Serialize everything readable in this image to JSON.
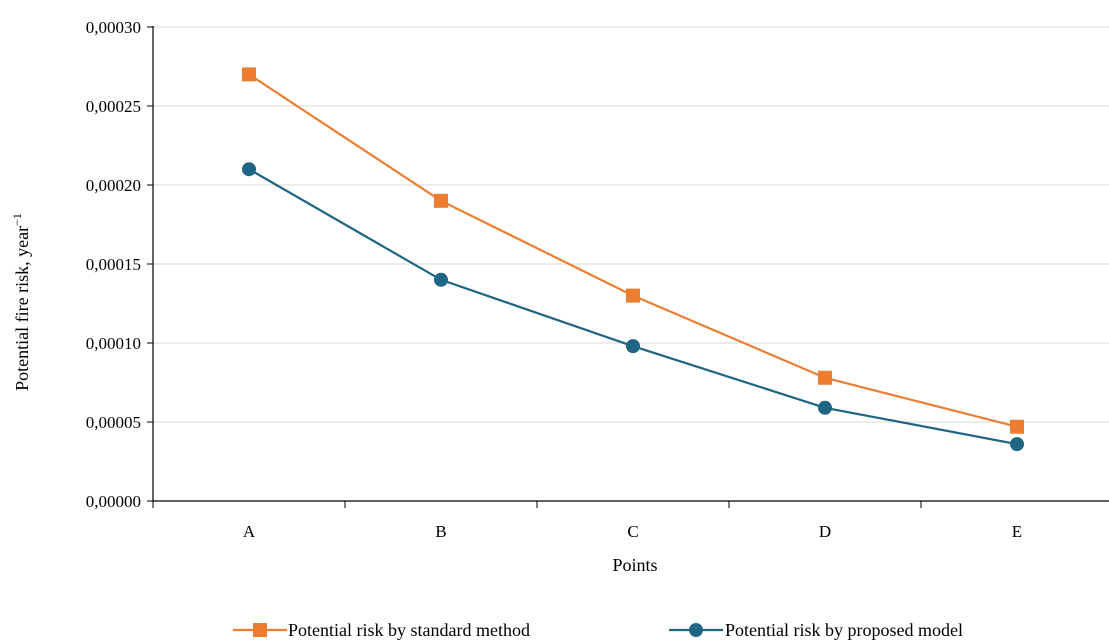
{
  "chart_data": {
    "type": "line",
    "title": "",
    "xlabel": "Points",
    "ylabel": "Potential fire risk, year",
    "ylabel_superscript": "−1",
    "categories": [
      "A",
      "B",
      "C",
      "D",
      "E"
    ],
    "ylim": [
      0,
      0.0003
    ],
    "yticks": [
      0,
      5e-05,
      0.0001,
      0.00015,
      0.0002,
      0.00025,
      0.0003
    ],
    "ytick_labels": [
      "0,00000",
      "0,00005",
      "0,00010",
      "0,00015",
      "0,00020",
      "0,00025",
      "0,00030"
    ],
    "grid": "horizontal",
    "legend_position": "bottom",
    "series": [
      {
        "name": "Potential risk by standard method",
        "color": "#ED7D31",
        "marker": "square",
        "values": [
          0.00027,
          0.00019,
          0.00013,
          7.8e-05,
          4.7e-05
        ]
      },
      {
        "name": "Potential risk by proposed model",
        "color": "#1F6584",
        "marker": "circle",
        "values": [
          0.00021,
          0.00014,
          9.8e-05,
          5.9e-05,
          3.6e-05
        ]
      }
    ]
  }
}
